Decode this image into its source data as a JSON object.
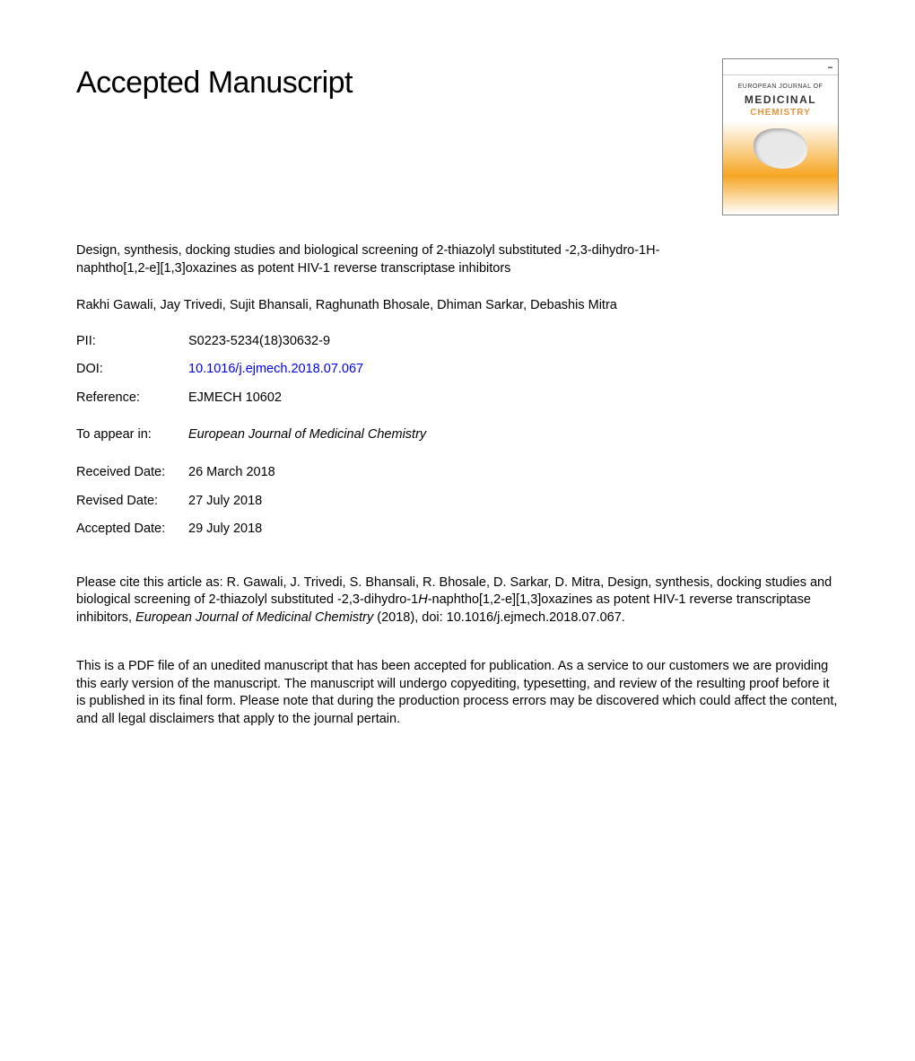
{
  "header": {
    "title": "Accepted Manuscript"
  },
  "cover": {
    "journal_line1": "EUROPEAN JOURNAL OF",
    "journal_line2": "MEDICINAL",
    "journal_line3": "CHEMISTRY"
  },
  "article": {
    "title": "Design, synthesis, docking studies and biological screening of 2-thiazolyl substituted -2,3-dihydro-1H-naphtho[1,2-e][1,3]oxazines as potent HIV-1 reverse transcriptase inhibitors",
    "authors": "Rakhi Gawali, Jay Trivedi, Sujit Bhansali, Raghunath Bhosale, Dhiman Sarkar, Debashis Mitra"
  },
  "meta": {
    "pii_label": "PII:",
    "pii_value": "S0223-5234(18)30632-9",
    "doi_label": "DOI:",
    "doi_value": "10.1016/j.ejmech.2018.07.067",
    "ref_label": "Reference:",
    "ref_value": "EJMECH 10602",
    "appear_label": "To appear in:",
    "appear_value": "European Journal of Medicinal Chemistry"
  },
  "dates": {
    "received_label": "Received Date:",
    "received_value": "26 March 2018",
    "revised_label": "Revised Date:",
    "revised_value": "27 July 2018",
    "accepted_label": "Accepted Date:",
    "accepted_value": "29 July 2018"
  },
  "citation": {
    "prefix": "Please cite this article as: R. Gawali, J. Trivedi, S. Bhansali, R. Bhosale, D. Sarkar, D. Mitra, Design, synthesis, docking studies and biological screening of 2-thiazolyl substituted -2,3-dihydro-1",
    "italic1": "H",
    "middle": "-naphtho[1,2-e][1,3]oxazines as potent HIV-1 reverse transcriptase inhibitors, ",
    "journal": "European Journal of Medicinal Chemistry",
    "suffix": " (2018), doi: 10.1016/j.ejmech.2018.07.067."
  },
  "disclaimer": {
    "text": "This is a PDF file of an unedited manuscript that has been accepted for publication. As a service to our customers we are providing this early version of the manuscript. The manuscript will undergo copyediting, typesetting, and review of the resulting proof before it is published in its final form. Please note that during the production process errors may be discovered which could affect the content, and all legal disclaimers that apply to the journal pertain."
  },
  "colors": {
    "text": "#000000",
    "link": "#0000ee",
    "background": "#ffffff",
    "cover_gradient_mid": "#f5a623"
  },
  "typography": {
    "body_fontsize": 14.5,
    "h1_fontsize": 34,
    "font_family": "Arial"
  }
}
